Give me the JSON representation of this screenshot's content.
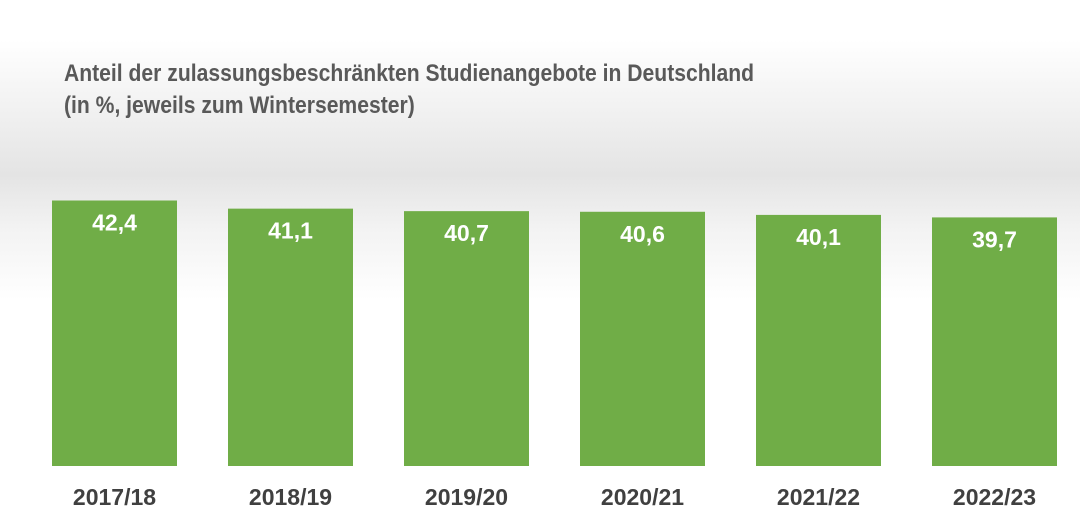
{
  "chart_data": {
    "type": "bar",
    "title": "Anteil der zulassungsbeschränkten Studienangebote in Deutschland",
    "subtitle": "(in %, jeweils zum Wintersemester)",
    "categories": [
      "2017/18",
      "2018/19",
      "2019/20",
      "2020/21",
      "2021/22",
      "2022/23"
    ],
    "values": [
      42.4,
      41.1,
      40.7,
      40.6,
      40.1,
      39.7
    ],
    "value_labels": [
      "42,4",
      "41,1",
      "40,7",
      "40,6",
      "40,1",
      "39,7"
    ],
    "xlabel": "",
    "ylabel": "",
    "ylim": [
      0,
      42.4
    ],
    "grid": false,
    "legend": "none",
    "colors": {
      "bar": "#70ad47",
      "title": "#595959",
      "tick_label": "#404040",
      "value_label": "#ffffff"
    }
  }
}
